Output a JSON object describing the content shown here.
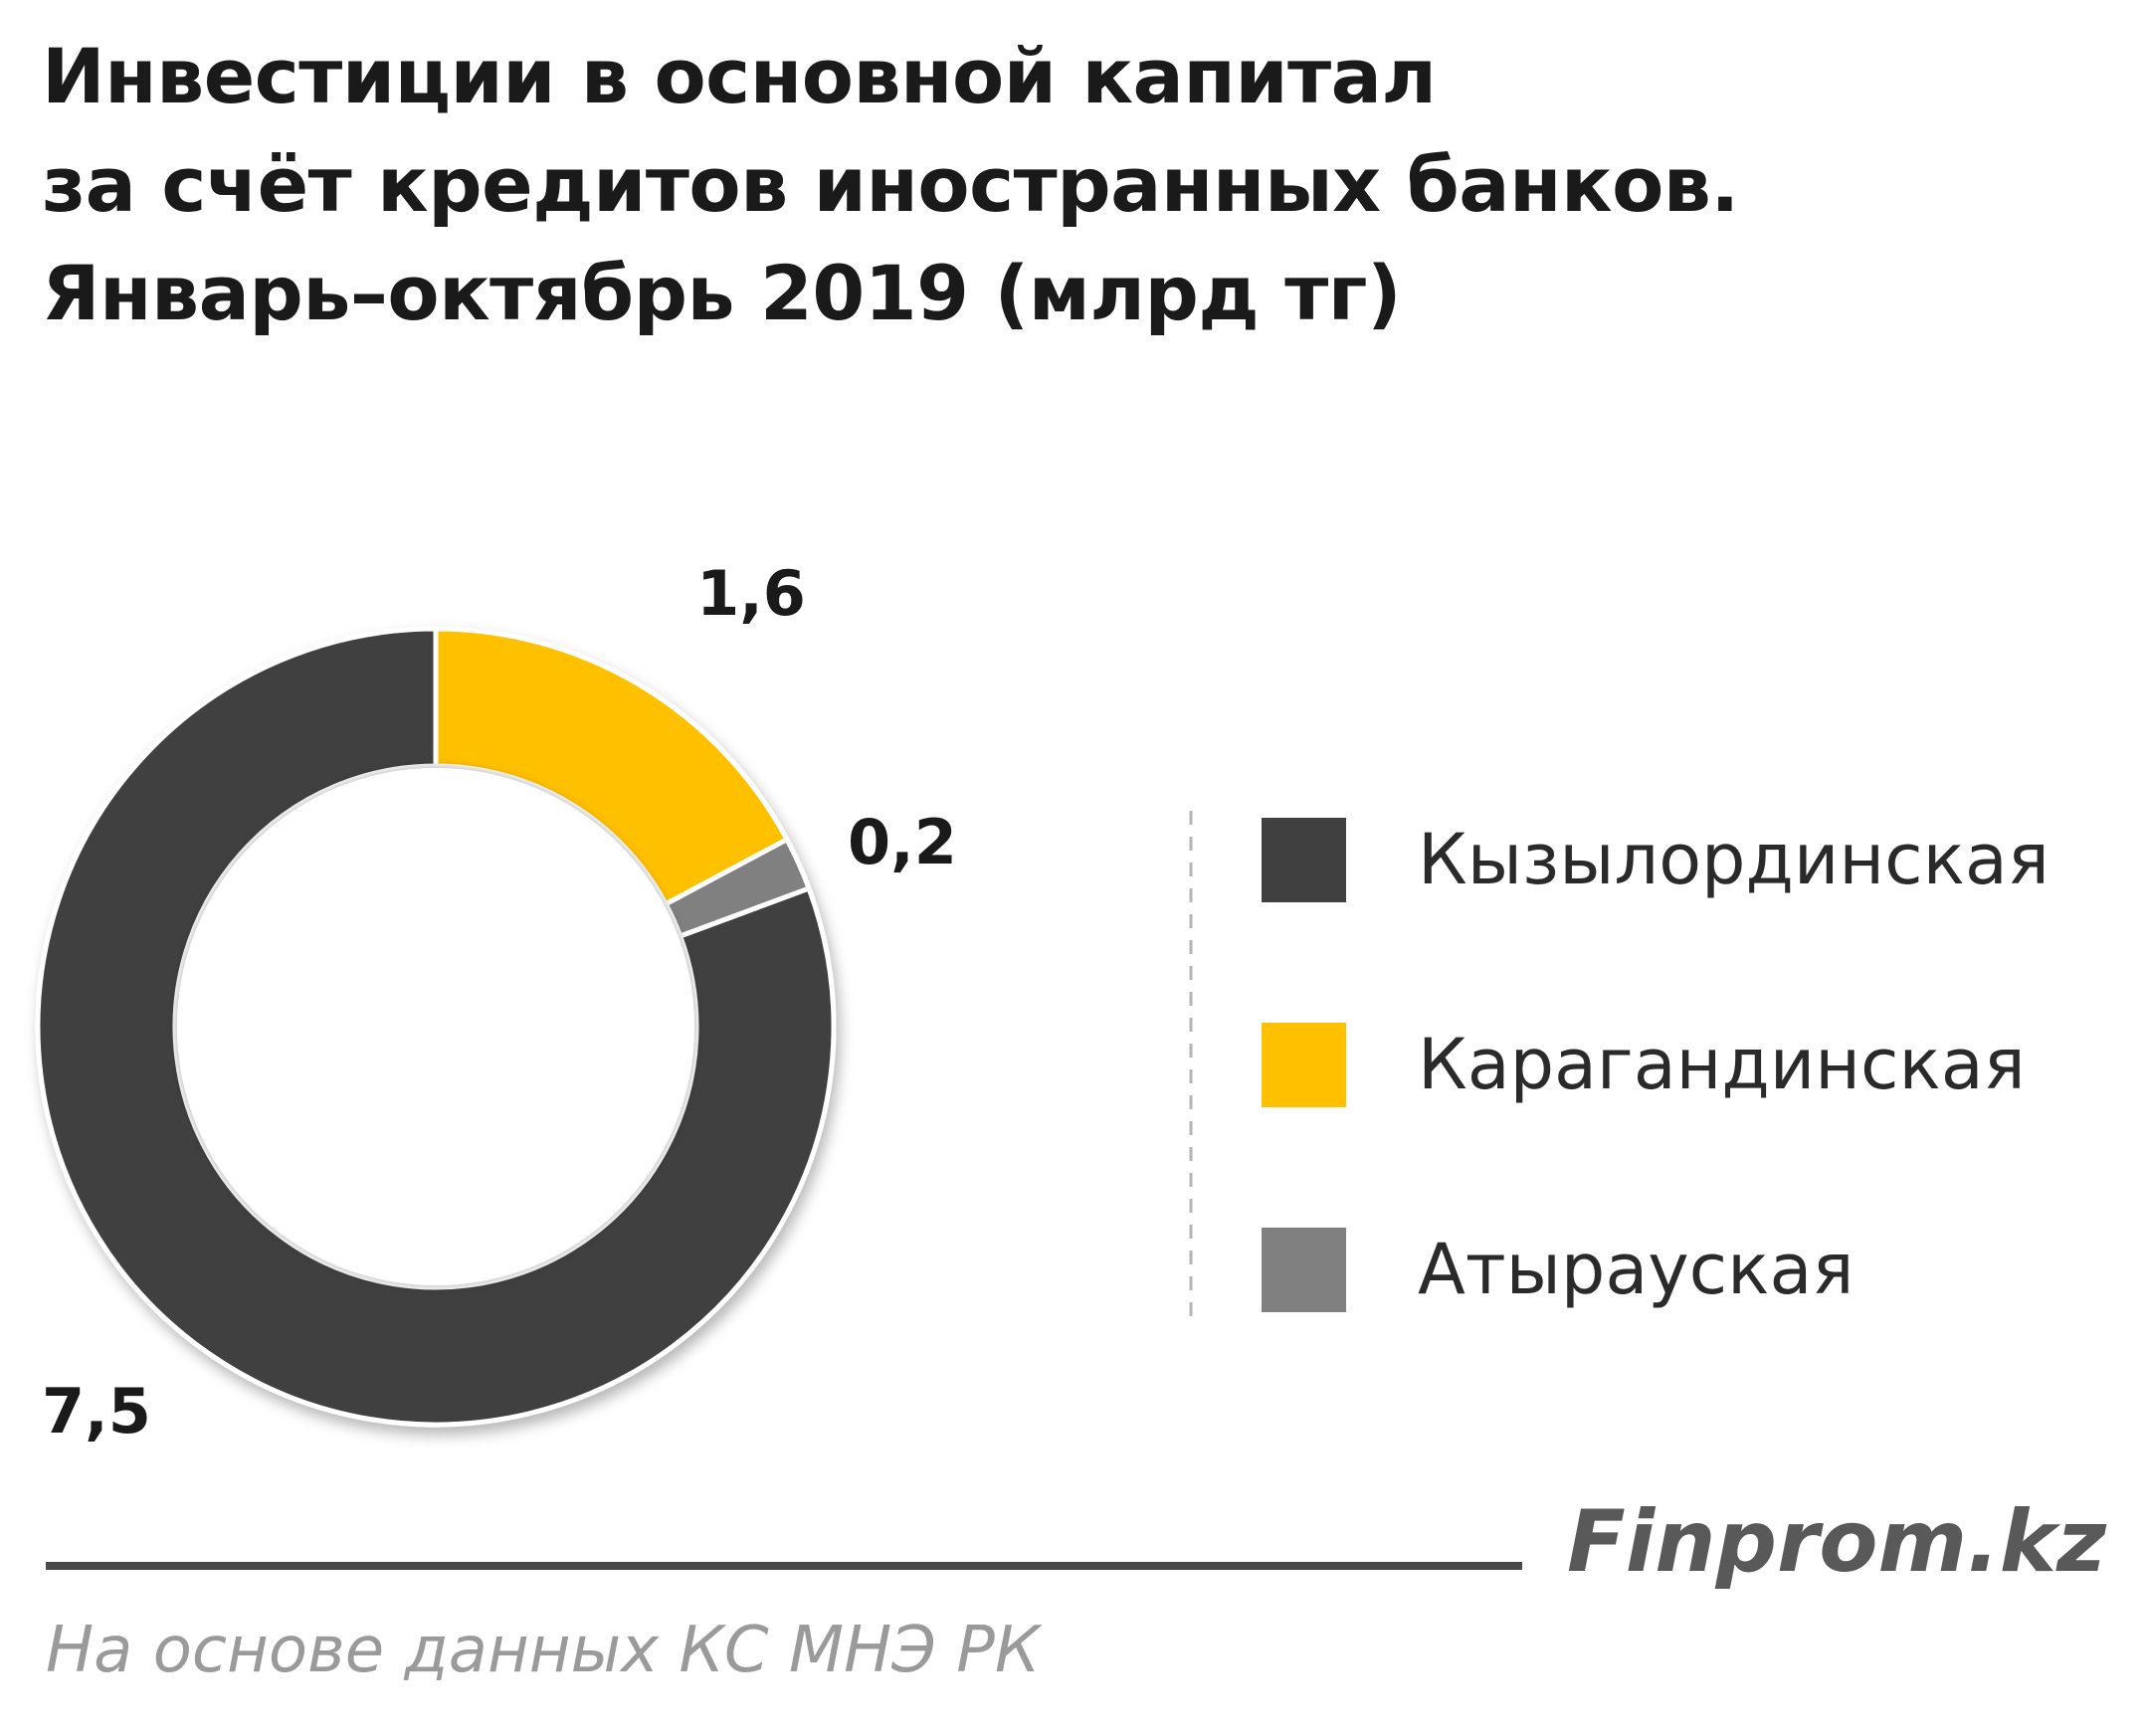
{
  "header": {
    "title_lines": [
      "Инвестиции в основной капитал",
      "за счёт кредитов иностранных банков.",
      "Январь–октябрь 2019  (млрд тг)"
    ]
  },
  "footer": {
    "brand": "Finprom.kz",
    "source": "На основе данных  КС МНЭ РК"
  },
  "chart_data": {
    "type": "pie",
    "variant": "doughnut",
    "title": "Инвестиции в основной капитал за счёт кредитов иностранных банков. Январь–октябрь 2019  (млрд тг)",
    "categories": [
      "Кызылординская",
      "Карагандинская",
      "Атырауская"
    ],
    "values": [
      7.5,
      1.6,
      0.2
    ],
    "value_labels": [
      "7,5",
      "1,6",
      "0,2"
    ],
    "colors": [
      "#404040",
      "#ffc000",
      "#808080"
    ],
    "legend_position": "right"
  }
}
